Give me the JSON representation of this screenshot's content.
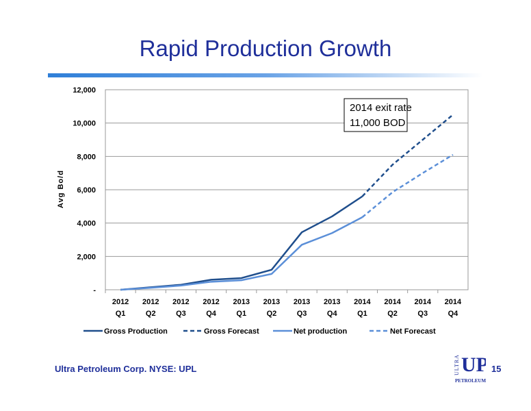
{
  "slide": {
    "title": "Rapid Production Growth",
    "footer": "Ultra Petroleum Corp. NYSE: UPL",
    "page_number": "15",
    "logo_text": {
      "ultra": "ULTRA",
      "up": "UP",
      "petroleum": "PETROLEUM"
    }
  },
  "colors": {
    "title": "#1f2f9a",
    "gross": "#1f4e8c",
    "net": "#5b8fd8",
    "rule": "#2f7fd8"
  },
  "chart_data": {
    "type": "line",
    "ylabel": "Avg Bo/d",
    "ylim": [
      0,
      12000
    ],
    "yticks": [
      0,
      2000,
      4000,
      6000,
      8000,
      10000,
      12000
    ],
    "ytick_labels": [
      "-",
      "2,000",
      "4,000",
      "6,000",
      "8,000",
      "10,000",
      "12,000"
    ],
    "categories": [
      [
        "2012",
        "Q1"
      ],
      [
        "2012",
        "Q2"
      ],
      [
        "2012",
        "Q3"
      ],
      [
        "2012",
        "Q4"
      ],
      [
        "2013",
        "Q1"
      ],
      [
        "2013",
        "Q2"
      ],
      [
        "2013",
        "Q3"
      ],
      [
        "2013",
        "Q4"
      ],
      [
        "2014",
        "Q1"
      ],
      [
        "2014",
        "Q2"
      ],
      [
        "2014",
        "Q3"
      ],
      [
        "2014",
        "Q4"
      ]
    ],
    "grid": "horizontal",
    "legend_position": "bottom",
    "series": [
      {
        "name": "Gross Production",
        "style": "solid",
        "color": "#1f4e8c",
        "values": [
          0,
          150,
          300,
          600,
          700,
          1200,
          3450,
          4400,
          5600,
          null,
          null,
          null
        ]
      },
      {
        "name": "Gross Forecast",
        "style": "dashed",
        "color": "#1f4e8c",
        "values": [
          null,
          null,
          null,
          null,
          null,
          null,
          null,
          null,
          5600,
          7500,
          9000,
          10500
        ]
      },
      {
        "name": "Net production",
        "style": "solid",
        "color": "#5b8fd8",
        "values": [
          0,
          120,
          250,
          480,
          570,
          950,
          2700,
          3400,
          4350,
          null,
          null,
          null
        ]
      },
      {
        "name": "Net Forecast",
        "style": "dashed",
        "color": "#5b8fd8",
        "values": [
          null,
          null,
          null,
          null,
          null,
          null,
          null,
          null,
          4350,
          5850,
          7000,
          8100
        ]
      }
    ],
    "annotation": [
      "2014 exit rate",
      "11,000 BOD"
    ]
  }
}
